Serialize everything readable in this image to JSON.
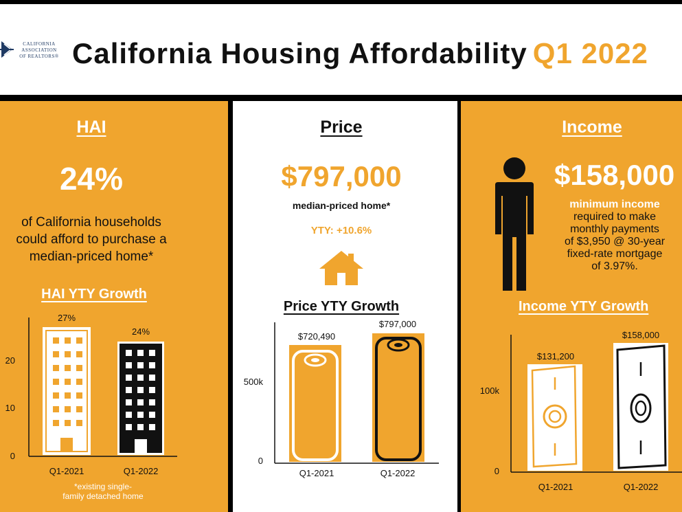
{
  "header": {
    "logo_lines": [
      "CALIFORNIA",
      "ASSOCIATION",
      "OF REALTORS®"
    ],
    "title": "California Housing Affordability",
    "quarter": "Q1 2022"
  },
  "hai": {
    "heading": "HAI",
    "big_value": "24%",
    "desc_lines": [
      "of California households",
      "could afford to purchase a",
      "median-priced home*"
    ],
    "chart_title": "HAI YTY Growth",
    "footnote_lines": [
      "*existing single-",
      "family detached home"
    ]
  },
  "price": {
    "heading": "Price",
    "big_value": "$797,000",
    "sub": "median-priced home*",
    "yty": "YTY: +10.6%",
    "chart_title": "Price YTY Growth"
  },
  "income": {
    "heading": "Income",
    "big_value": "$158,000",
    "desc_lines": [
      "minimum income",
      "required to make",
      "monthly payments",
      "of $3,950 @ 30-year",
      "fixed-rate mortgage",
      "of 3.97%."
    ],
    "chart_title": "Income YTY Growth"
  },
  "colors": {
    "orange": "#f0a52e",
    "black": "#111111",
    "white": "#ffffff"
  },
  "chart_data": [
    {
      "type": "bar",
      "title": "HAI YTY Growth",
      "categories": [
        "Q1-2021",
        "Q1-2022"
      ],
      "values": [
        27,
        24
      ],
      "value_labels": [
        "27%",
        "24%"
      ],
      "yticks": [
        0,
        10,
        20
      ],
      "ylim": [
        0,
        30
      ],
      "unit": "%"
    },
    {
      "type": "bar",
      "title": "Price YTY Growth",
      "categories": [
        "Q1-2021",
        "Q1-2022"
      ],
      "values": [
        720490,
        797000
      ],
      "value_labels": [
        "$720,490",
        "$797,000"
      ],
      "yticks": [
        0,
        500000
      ],
      "ytick_labels": [
        "0",
        "500k"
      ],
      "ylim": [
        0,
        830000
      ]
    },
    {
      "type": "bar",
      "title": "Income YTY Growth",
      "categories": [
        "Q1-2021",
        "Q1-2022"
      ],
      "values": [
        131200,
        158000
      ],
      "value_labels": [
        "$131,200",
        "$158,000"
      ],
      "yticks": [
        0,
        100000
      ],
      "ytick_labels": [
        "0",
        "100k"
      ],
      "ylim": [
        0,
        170000
      ]
    }
  ]
}
